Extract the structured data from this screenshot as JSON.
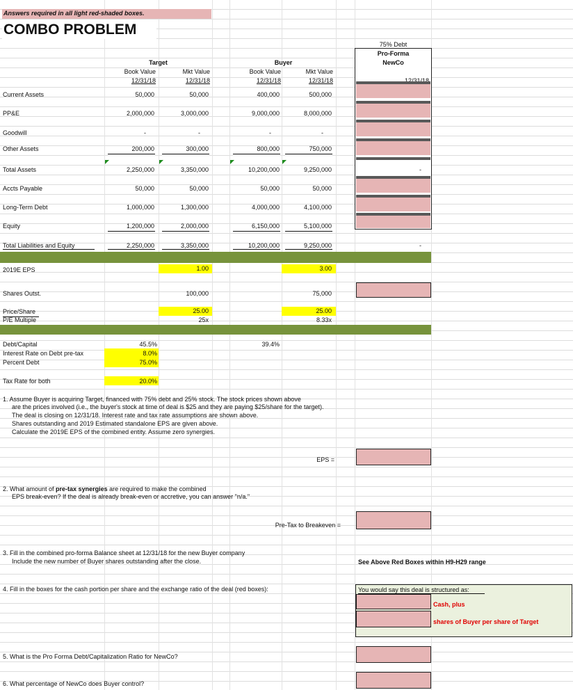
{
  "header": {
    "note": "Answers required in all light red-shaded boxes.",
    "title": "COMBO PROBLEM"
  },
  "newco": {
    "line1": "75% Debt",
    "line2": "Pro-Forma",
    "line3": "NewCo",
    "date": "12/31/18"
  },
  "target": {
    "title": "Target",
    "book_label": "Book Value",
    "mkt_label": "Mkt Value",
    "book_date": "12/31/18",
    "mkt_date": "12/31/18"
  },
  "buyer": {
    "title": "Buyer",
    "book_label": "Book Value",
    "mkt_label": "Mkt Value",
    "book_date": "12/31/18",
    "mkt_date": "12/31/18"
  },
  "rows": [
    {
      "label": "Current Assets",
      "tb": "50,000",
      "tm": "50,000",
      "bb": "400,000",
      "bm": "500,000"
    },
    {
      "label": "PP&E",
      "tb": "2,000,000",
      "tm": "3,000,000",
      "bb": "9,000,000",
      "bm": "8,000,000"
    },
    {
      "label": "Goodwill",
      "tb": "-",
      "tm": "-",
      "bb": "-",
      "bm": "-"
    },
    {
      "label": "Other Assets",
      "tb": "200,000",
      "tm": "300,000",
      "bb": "800,000",
      "bm": "750,000"
    },
    {
      "label": "Total Assets",
      "tb": "2,250,000",
      "tm": "3,350,000",
      "bb": "10,200,000",
      "bm": "9,250,000",
      "nc": "-"
    },
    {
      "label": "Accts Payable",
      "tb": "50,000",
      "tm": "50,000",
      "bb": "50,000",
      "bm": "50,000"
    },
    {
      "label": "Long-Term Debt",
      "tb": "1,000,000",
      "tm": "1,300,000",
      "bb": "4,000,000",
      "bm": "4,100,000"
    },
    {
      "label": "Equity",
      "tb": "1,200,000",
      "tm": "2,000,000",
      "bb": "6,150,000",
      "bm": "5,100,000"
    },
    {
      "label": "Total Liabilities and Equity",
      "tb": "2,250,000",
      "tm": "3,350,000",
      "bb": "10,200,000",
      "bm": "9,250,000",
      "nc": "-"
    }
  ],
  "eps": {
    "label": "2019E EPS",
    "target": "1.00",
    "buyer": "3.00"
  },
  "shares": {
    "label": "Shares Outst.",
    "target": "100,000",
    "buyer": "75,000"
  },
  "price": {
    "label": "Price/Share",
    "target": "25.00",
    "buyer": "25.00"
  },
  "pe": {
    "label": "P/E Multiple",
    "target": "25x",
    "buyer": "8.33x"
  },
  "assumptions": {
    "debt_cap_label": "Debt/Capital",
    "debt_cap_target": "45.5%",
    "debt_cap_buyer": "39.4%",
    "interest_label": "Interest Rate on Debt pre-tax",
    "interest_value": "8.0%",
    "pct_debt_label": "Percent Debt",
    "pct_debt_value": "75.0%",
    "tax_label": "Tax Rate for both",
    "tax_value": "20.0%"
  },
  "q1": {
    "line1": "1.  Assume Buyer is acquiring Target, financed with 75% debt and 25% stock.  The stock prices shown above",
    "line2": "are the prices involved (i.e., the buyer's stock at time of deal is $25 and they are paying $25/share for the target).",
    "line3": "The deal is closing on 12/31/18.  Interest rate and tax rate assumptions are shown above.",
    "line4": "Shares outstanding and 2019 Estimated standalone EPS are given above.",
    "line5": "Calculate the 2019E EPS of the combined entity.  Assume zero synergies.",
    "answer_label": "EPS ="
  },
  "q2": {
    "line1_a": "2.  What amount of ",
    "line1_b": "pre-tax synergies",
    "line1_c": " are required to make the combined",
    "line2": "EPS break-even?  If the deal is already break-even or accretive, you can answer \"n/a.\"",
    "answer_label": "Pre-Tax to Breakeven ="
  },
  "q3": {
    "line1": "3.  Fill in the combined pro-forma Balance sheet at 12/31/18 for the new Buyer company",
    "line2": "Include the new number of Buyer shares outstanding after the close.",
    "note": "See Above Red Boxes within H9-H29 range"
  },
  "q4": {
    "line1": "4.  Fill in the boxes for the cash portion per share and the exchange ratio of the deal (red boxes):",
    "box_title": "You would say this deal is structured as:",
    "cash_label": "Cash, plus",
    "shares_label": "shares of Buyer per share of Target"
  },
  "q5": {
    "line1": "5.  What is the Pro Forma Debt/Capitalization Ratio for NewCo?"
  },
  "q6": {
    "line1": "6.  What percentage of NewCo does Buyer control?"
  }
}
